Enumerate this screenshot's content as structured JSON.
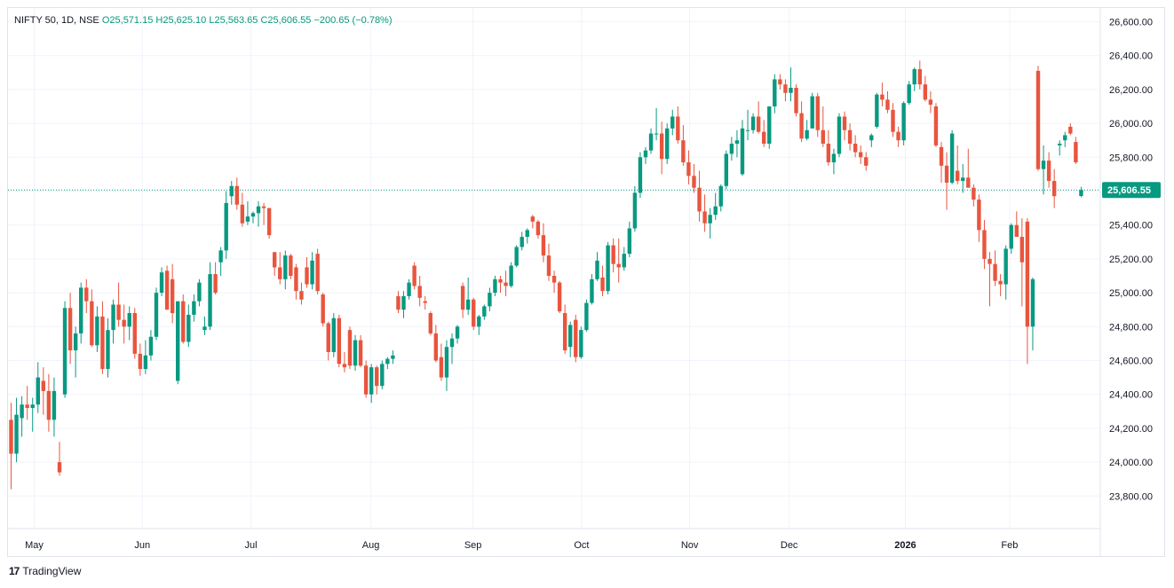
{
  "legend": {
    "symbol": "NIFTY 50, 1D, NSE",
    "open": "O25,571.15",
    "high": "H25,625.10",
    "low": "L25,563.65",
    "close": "C25,606.55",
    "change": "−200.65 (−0.78%)"
  },
  "brand": {
    "logo_text": "17",
    "name": "TradingView"
  },
  "colors": {
    "up": "#089981",
    "down": "#f23645",
    "down_candle": "#e8553e",
    "grid": "#f0f3fa",
    "axis_text": "#131722"
  },
  "chart_data": {
    "type": "candlestick",
    "symbol": "NIFTY 50",
    "interval": "1D",
    "exchange": "NSE",
    "ylim": [
      23700,
      26700
    ],
    "y_ticks": [
      "26,600.00",
      "26,400.00",
      "26,200.00",
      "26,000.00",
      "25,800.00",
      "25,600.00",
      "25,400.00",
      "25,200.00",
      "25,000.00",
      "24,800.00",
      "24,600.00",
      "24,400.00",
      "24,200.00",
      "24,000.00",
      "23,800.00"
    ],
    "x_labels": [
      {
        "label": "May",
        "bar": 4.3
      },
      {
        "label": "Jun",
        "bar": 24.4
      },
      {
        "label": "Jul",
        "bar": 44.6
      },
      {
        "label": "Aug",
        "bar": 66.9
      },
      {
        "label": "Sep",
        "bar": 85.9
      },
      {
        "label": "Oct",
        "bar": 106.1
      },
      {
        "label": "Nov",
        "bar": 126.2
      },
      {
        "label": "Dec",
        "bar": 144.7
      },
      {
        "label": "2026",
        "bar": 166.3
      },
      {
        "label": "Feb",
        "bar": 185.7
      }
    ],
    "last_price": "25,606.55",
    "last_value": 25606.55,
    "candles": [
      [
        24250,
        24350,
        23840,
        24050
      ],
      [
        24050,
        24380,
        24000,
        24280
      ],
      [
        24260,
        24390,
        24150,
        24340
      ],
      [
        24340,
        24450,
        24250,
        24320
      ],
      [
        24320,
        24380,
        24180,
        24340
      ],
      [
        24340,
        24590,
        24290,
        24500
      ],
      [
        24480,
        24560,
        24280,
        24420
      ],
      [
        24420,
        24520,
        24180,
        24250
      ],
      [
        24250,
        24500,
        24150,
        24420
      ],
      [
        24000,
        24120,
        23920,
        23940
      ],
      [
        24400,
        24950,
        24380,
        24910
      ],
      [
        24910,
        25000,
        24580,
        24660
      ],
      [
        24660,
        24800,
        24500,
        24760
      ],
      [
        24760,
        25060,
        24700,
        25030
      ],
      [
        25030,
        25080,
        24880,
        24950
      ],
      [
        24950,
        25020,
        24680,
        24690
      ],
      [
        24690,
        24920,
        24650,
        24860
      ],
      [
        24860,
        24950,
        24520,
        24550
      ],
      [
        24550,
        24850,
        24500,
        24780
      ],
      [
        24780,
        24960,
        24700,
        24930
      ],
      [
        24930,
        25060,
        24800,
        24840
      ],
      [
        24840,
        24930,
        24700,
        24800
      ],
      [
        24800,
        24920,
        24720,
        24880
      ],
      [
        24880,
        24910,
        24610,
        24640
      ],
      [
        24640,
        24700,
        24510,
        24550
      ],
      [
        24550,
        24720,
        24520,
        24630
      ],
      [
        24630,
        24780,
        24600,
        24740
      ],
      [
        24740,
        25030,
        24720,
        25000
      ],
      [
        25000,
        25150,
        24980,
        25120
      ],
      [
        25130,
        25160,
        24900,
        24900
      ],
      [
        25080,
        25170,
        24820,
        24880
      ],
      [
        24480,
        24920,
        24460,
        24950
      ],
      [
        24950,
        24990,
        24700,
        24710
      ],
      [
        24710,
        24930,
        24680,
        24870
      ],
      [
        24870,
        24990,
        24830,
        24950
      ],
      [
        24950,
        25080,
        24920,
        25060
      ],
      [
        24780,
        24860,
        24750,
        24800
      ],
      [
        24800,
        25180,
        24780,
        25110
      ],
      [
        25110,
        25180,
        24990,
        25000
      ],
      [
        25180,
        25270,
        25100,
        25250
      ],
      [
        25250,
        25600,
        25200,
        25530
      ],
      [
        25570,
        25660,
        25520,
        25630
      ],
      [
        25630,
        25680,
        25490,
        25520
      ],
      [
        25520,
        25590,
        25390,
        25410
      ],
      [
        25420,
        25540,
        25400,
        25450
      ],
      [
        25450,
        25480,
        25410,
        25470
      ],
      [
        25470,
        25540,
        25390,
        25510
      ],
      [
        25510,
        25530,
        25400,
        25500
      ],
      [
        25500,
        25500,
        25320,
        25340
      ],
      [
        25240,
        25240,
        25100,
        25150
      ],
      [
        25150,
        25240,
        25050,
        25080
      ],
      [
        25080,
        25250,
        25020,
        25220
      ],
      [
        25220,
        25230,
        25080,
        25100
      ],
      [
        25150,
        25170,
        24960,
        25010
      ],
      [
        25010,
        25060,
        24930,
        24960
      ],
      [
        25150,
        25210,
        25030,
        25050
      ],
      [
        25050,
        25240,
        25020,
        25190
      ],
      [
        25230,
        25260,
        24990,
        25010
      ],
      [
        24990,
        25000,
        24800,
        24820
      ],
      [
        24820,
        24830,
        24600,
        24650
      ],
      [
        24650,
        24880,
        24620,
        24850
      ],
      [
        24850,
        24870,
        24560,
        24580
      ],
      [
        24580,
        24650,
        24530,
        24560
      ],
      [
        24780,
        24800,
        24550,
        24570
      ],
      [
        24570,
        24750,
        24540,
        24720
      ],
      [
        24720,
        24750,
        24560,
        24570
      ],
      [
        24570,
        24600,
        24380,
        24400
      ],
      [
        24400,
        24580,
        24350,
        24560
      ],
      [
        24560,
        24570,
        24400,
        24450
      ],
      [
        24450,
        24600,
        24430,
        24580
      ],
      [
        24580,
        24620,
        24550,
        24610
      ],
      [
        24610,
        24660,
        24580,
        24630
      ],
      [
        24980,
        25010,
        24880,
        24900
      ],
      [
        24900,
        25010,
        24850,
        24980
      ],
      [
        24980,
        25080,
        24960,
        25060
      ],
      [
        25160,
        25180,
        25020,
        25040
      ],
      [
        25040,
        25100,
        24920,
        24970
      ],
      [
        24950,
        24980,
        24900,
        24940
      ],
      [
        24880,
        24890,
        24750,
        24760
      ],
      [
        24760,
        24810,
        24590,
        24600
      ],
      [
        24620,
        24700,
        24480,
        24500
      ],
      [
        24500,
        24720,
        24420,
        24680
      ],
      [
        24680,
        24760,
        24580,
        24730
      ],
      [
        24730,
        24810,
        24700,
        24800
      ],
      [
        25040,
        25060,
        24850,
        24900
      ],
      [
        24900,
        25090,
        24870,
        24960
      ],
      [
        24960,
        24970,
        24780,
        24800
      ],
      [
        24800,
        24870,
        24750,
        24860
      ],
      [
        24860,
        24930,
        24840,
        24920
      ],
      [
        24920,
        25030,
        24890,
        25000
      ],
      [
        25000,
        25100,
        24980,
        25080
      ],
      [
        25080,
        25100,
        25000,
        25060
      ],
      [
        25060,
        25130,
        24980,
        25040
      ],
      [
        25040,
        25180,
        25030,
        25160
      ],
      [
        25160,
        25280,
        25150,
        25270
      ],
      [
        25270,
        25360,
        25250,
        25330
      ],
      [
        25330,
        25380,
        25290,
        25370
      ],
      [
        25450,
        25460,
        25380,
        25420
      ],
      [
        25420,
        25430,
        25320,
        25340
      ],
      [
        25340,
        25410,
        25180,
        25220
      ],
      [
        25220,
        25290,
        25070,
        25100
      ],
      [
        25100,
        25130,
        25000,
        25060
      ],
      [
        25060,
        25070,
        24880,
        24890
      ],
      [
        24880,
        24930,
        24640,
        24660
      ],
      [
        24680,
        24830,
        24620,
        24810
      ],
      [
        24840,
        24870,
        24590,
        24620
      ],
      [
        24620,
        24800,
        24610,
        24780
      ],
      [
        24780,
        24960,
        24770,
        24940
      ],
      [
        24940,
        25110,
        24930,
        25080
      ],
      [
        25080,
        25240,
        25070,
        25190
      ],
      [
        25090,
        25160,
        24980,
        25010
      ],
      [
        25010,
        25300,
        24990,
        25280
      ],
      [
        25280,
        25320,
        25120,
        25170
      ],
      [
        25170,
        25320,
        25060,
        25150
      ],
      [
        25150,
        25270,
        25130,
        25230
      ],
      [
        25230,
        25420,
        25210,
        25380
      ],
      [
        25380,
        25630,
        25360,
        25590
      ],
      [
        25590,
        25830,
        25560,
        25800
      ],
      [
        25800,
        25860,
        25760,
        25840
      ],
      [
        25840,
        25970,
        25820,
        25940
      ],
      [
        25940,
        26090,
        25900,
        25940
      ],
      [
        25940,
        26010,
        25700,
        25790
      ],
      [
        25790,
        26000,
        25760,
        25970
      ],
      [
        25970,
        26080,
        25930,
        26040
      ],
      [
        26040,
        26100,
        25880,
        25900
      ],
      [
        25900,
        25990,
        25750,
        25770
      ],
      [
        25770,
        25840,
        25640,
        25690
      ],
      [
        25690,
        25760,
        25590,
        25620
      ],
      [
        25620,
        25720,
        25420,
        25480
      ],
      [
        25480,
        25580,
        25360,
        25410
      ],
      [
        25410,
        25500,
        25320,
        25460
      ],
      [
        25460,
        25590,
        25430,
        25510
      ],
      [
        25510,
        25640,
        25480,
        25630
      ],
      [
        25630,
        25840,
        25610,
        25820
      ],
      [
        25820,
        25920,
        25780,
        25880
      ],
      [
        25880,
        25960,
        25800,
        25900
      ],
      [
        25700,
        26020,
        25690,
        25970
      ],
      [
        25960,
        26080,
        25900,
        25960
      ],
      [
        25960,
        26060,
        25940,
        26040
      ],
      [
        26040,
        26130,
        25940,
        25950
      ],
      [
        25950,
        26020,
        25860,
        25880
      ],
      [
        25880,
        26100,
        25850,
        26100
      ],
      [
        26100,
        26290,
        26060,
        26260
      ],
      [
        26260,
        26290,
        26200,
        26230
      ],
      [
        26230,
        26260,
        26130,
        26180
      ],
      [
        26180,
        26330,
        26130,
        26210
      ],
      [
        26210,
        26230,
        26040,
        26060
      ],
      [
        26060,
        26130,
        25890,
        25910
      ],
      [
        25910,
        26020,
        25900,
        25960
      ],
      [
        25970,
        26180,
        25970,
        26160
      ],
      [
        26160,
        26180,
        25920,
        25960
      ],
      [
        25960,
        26100,
        25860,
        25880
      ],
      [
        25880,
        25960,
        25750,
        25770
      ],
      [
        25770,
        25850,
        25700,
        25820
      ],
      [
        25820,
        26060,
        25800,
        26040
      ],
      [
        26040,
        26070,
        25900,
        25960
      ],
      [
        25960,
        26000,
        25840,
        25880
      ],
      [
        25880,
        25930,
        25800,
        25830
      ],
      [
        25830,
        25870,
        25760,
        25800
      ],
      [
        25800,
        25830,
        25720,
        25750
      ],
      [
        25900,
        25940,
        25860,
        25930
      ],
      [
        25980,
        26180,
        25970,
        26170
      ],
      [
        26170,
        26240,
        26100,
        26140
      ],
      [
        26140,
        26190,
        26060,
        26080
      ],
      [
        26080,
        26120,
        25920,
        25950
      ],
      [
        25950,
        25980,
        25860,
        25900
      ],
      [
        25900,
        26130,
        25870,
        26120
      ],
      [
        26120,
        26250,
        26110,
        26230
      ],
      [
        26230,
        26330,
        26190,
        26320
      ],
      [
        26320,
        26370,
        26200,
        26230
      ],
      [
        26230,
        26280,
        26130,
        26140
      ],
      [
        26140,
        26190,
        26060,
        26110
      ],
      [
        26100,
        26120,
        25860,
        25870
      ],
      [
        25860,
        25890,
        25650,
        25750
      ],
      [
        25750,
        25830,
        25490,
        25650
      ],
      [
        25650,
        25960,
        25640,
        25940
      ],
      [
        25720,
        25870,
        25640,
        25660
      ],
      [
        25660,
        25760,
        25590,
        25680
      ],
      [
        25680,
        25850,
        25620,
        25620
      ],
      [
        25620,
        25640,
        25510,
        25550
      ],
      [
        25550,
        25580,
        25300,
        25370
      ],
      [
        25370,
        25430,
        25140,
        25200
      ],
      [
        25200,
        25240,
        24920,
        25170
      ],
      [
        25170,
        25250,
        25040,
        25070
      ],
      [
        25070,
        25110,
        24980,
        25050
      ],
      [
        25050,
        25280,
        24960,
        25260
      ],
      [
        25260,
        25410,
        25230,
        25400
      ],
      [
        25400,
        25480,
        25360,
        25330
      ],
      [
        25330,
        25440,
        24920,
        25180
      ],
      [
        25420,
        25440,
        24580,
        24800
      ],
      [
        24800,
        25090,
        24660,
        25080
      ],
      [
        26310,
        26340,
        25720,
        25730
      ],
      [
        25730,
        25870,
        25580,
        25780
      ],
      [
        25780,
        25830,
        25620,
        25660
      ],
      [
        25660,
        25730,
        25500,
        25570
      ],
      [
        25870,
        25900,
        25810,
        25880
      ],
      [
        25900,
        25950,
        25860,
        25930
      ],
      [
        25980,
        26000,
        25930,
        25940
      ],
      [
        25890,
        25920,
        25760,
        25770
      ],
      [
        25571.15,
        25625.1,
        25563.65,
        25606.55
      ]
    ]
  }
}
